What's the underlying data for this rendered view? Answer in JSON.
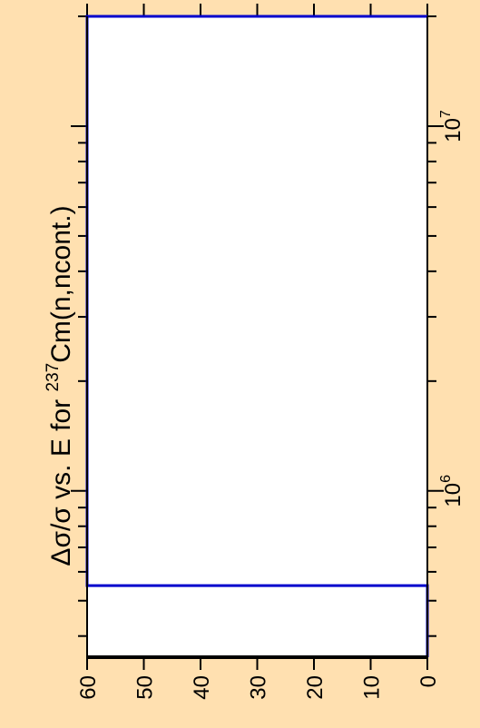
{
  "chart_data": {
    "type": "line",
    "title": "Δσ/σ vs. E for ",
    "title_isotope_mass": "237",
    "title_reaction": "Cm(n,ncont.)",
    "xscale": "log",
    "xlim": [
      350000,
      20000000
    ],
    "ylim": [
      0,
      60
    ],
    "x_major_ticks": [
      {
        "value": 1000000,
        "base": "10",
        "exp": "6"
      },
      {
        "value": 10000000,
        "base": "10",
        "exp": "7"
      }
    ],
    "y_ticks": [
      0,
      10,
      20,
      30,
      40,
      50,
      60
    ],
    "y_tick_labels": [
      "0",
      "10",
      "20",
      "30",
      "40",
      "50",
      "60"
    ],
    "series": [
      {
        "color": "#0000cc",
        "points": [
          [
            350000,
            0
          ],
          [
            550000,
            0
          ],
          [
            550000,
            60
          ],
          [
            20000000,
            60
          ],
          [
            20000000,
            0
          ]
        ]
      }
    ],
    "colors": {
      "background": "#ffe0b0",
      "plot_area": "#ffffff",
      "axes": "#000000",
      "series": "#0000cc"
    }
  }
}
